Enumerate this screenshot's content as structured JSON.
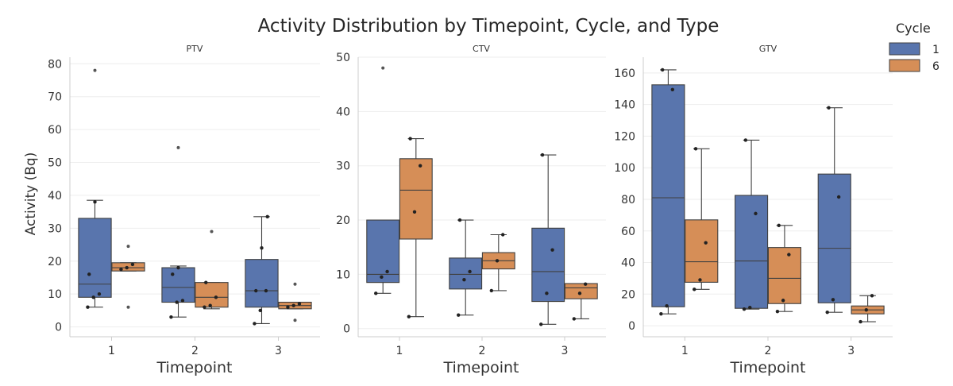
{
  "chart_data": {
    "type": "box",
    "title": "Activity Distribution by Timepoint, Cycle, and Type",
    "ylabel": "Activity (Bq)",
    "legend": {
      "title": "Cycle",
      "position": "top-right",
      "entries": [
        {
          "label": "1",
          "color": "#5975ad"
        },
        {
          "label": "6",
          "color": "#d68e57"
        }
      ]
    },
    "grid": true,
    "panels": [
      {
        "name": "PTV",
        "xlabel": "Timepoint",
        "categories": [
          "1",
          "2",
          "3"
        ],
        "ylim": [
          -3,
          82
        ],
        "yticks": [
          0,
          10,
          20,
          30,
          40,
          50,
          60,
          70,
          80
        ],
        "series": [
          {
            "cycle": "1",
            "boxes": [
              {
                "q1": 9,
                "median": 13,
                "q3": 33,
                "whislo": 6,
                "whishi": 38.5,
                "points": [
                  6,
                  9,
                  10,
                  16,
                  38
                ],
                "fliers": [
                  78
                ]
              },
              {
                "q1": 7.5,
                "median": 12,
                "q3": 18,
                "whislo": 3,
                "whishi": 18.5,
                "points": [
                  3,
                  7.5,
                  8,
                  16,
                  18
                ],
                "fliers": [
                  54.5
                ]
              },
              {
                "q1": 6,
                "median": 11,
                "q3": 20.5,
                "whislo": 1,
                "whishi": 33.5,
                "points": [
                  1,
                  5,
                  11,
                  11,
                  24,
                  33.5
                ],
                "fliers": []
              }
            ]
          },
          {
            "cycle": "6",
            "boxes": [
              {
                "q1": 17,
                "median": 18,
                "q3": 19.5,
                "whislo": 17,
                "whishi": 19.5,
                "points": [
                  17.5,
                  18,
                  19
                ],
                "fliers": [
                  6,
                  24.5
                ]
              },
              {
                "q1": 6,
                "median": 9,
                "q3": 13.5,
                "whislo": 5.5,
                "whishi": 13.5,
                "points": [
                  6,
                  6.5,
                  9,
                  13.5
                ],
                "fliers": [
                  29
                ]
              },
              {
                "q1": 5.5,
                "median": 6.5,
                "q3": 7.5,
                "whislo": 5.5,
                "whishi": 7.5,
                "points": [
                  6,
                  6.5,
                  7
                ],
                "fliers": [
                  2,
                  13
                ]
              }
            ]
          }
        ]
      },
      {
        "name": "CTV",
        "xlabel": "Timepoint",
        "categories": [
          "1",
          "2",
          "3"
        ],
        "ylim": [
          -1.5,
          50
        ],
        "yticks": [
          0,
          10,
          20,
          30,
          40,
          50
        ],
        "series": [
          {
            "cycle": "1",
            "boxes": [
              {
                "q1": 8.5,
                "median": 10,
                "q3": 20,
                "whislo": 6.5,
                "whishi": 20,
                "points": [
                  6.5,
                  9.5,
                  10.5
                ],
                "fliers": [
                  48
                ]
              },
              {
                "q1": 7.3,
                "median": 10,
                "q3": 13,
                "whislo": 2.5,
                "whishi": 20,
                "points": [
                  2.5,
                  9,
                  10.5,
                  20
                ],
                "fliers": []
              },
              {
                "q1": 5,
                "median": 10.5,
                "q3": 18.5,
                "whislo": 0.8,
                "whishi": 32,
                "points": [
                  0.8,
                  6.5,
                  14.5,
                  32
                ],
                "fliers": []
              }
            ]
          },
          {
            "cycle": "6",
            "boxes": [
              {
                "q1": 16.5,
                "median": 25.5,
                "q3": 31.3,
                "whislo": 2.2,
                "whishi": 35,
                "points": [
                  2.2,
                  21.5,
                  30,
                  35
                ],
                "fliers": []
              },
              {
                "q1": 11,
                "median": 12.5,
                "q3": 14,
                "whislo": 7,
                "whishi": 17.3,
                "points": [
                  7,
                  12.5,
                  17.3
                ],
                "fliers": []
              },
              {
                "q1": 5.5,
                "median": 7.5,
                "q3": 8.3,
                "whislo": 1.8,
                "whishi": 8.3,
                "points": [
                  1.8,
                  6.5,
                  8.2
                ],
                "fliers": []
              }
            ]
          }
        ]
      },
      {
        "name": "GTV",
        "xlabel": "Timepoint",
        "categories": [
          "1",
          "2",
          "3"
        ],
        "ylim": [
          -7,
          170
        ],
        "yticks": [
          0,
          20,
          40,
          60,
          80,
          100,
          120,
          140,
          160
        ],
        "series": [
          {
            "cycle": "1",
            "boxes": [
              {
                "q1": 12,
                "median": 81,
                "q3": 152.5,
                "whislo": 7.5,
                "whishi": 162,
                "points": [
                  7.5,
                  12.5,
                  149.5,
                  162
                ],
                "fliers": []
              },
              {
                "q1": 11,
                "median": 41,
                "q3": 82.5,
                "whislo": 10.5,
                "whishi": 117.5,
                "points": [
                  10.5,
                  11.5,
                  71,
                  117.5
                ],
                "fliers": []
              },
              {
                "q1": 14.5,
                "median": 49,
                "q3": 96,
                "whislo": 8.5,
                "whishi": 138,
                "points": [
                  8.5,
                  16.5,
                  81.5,
                  138
                ],
                "fliers": []
              }
            ]
          },
          {
            "cycle": "6",
            "boxes": [
              {
                "q1": 27.5,
                "median": 40.5,
                "q3": 67,
                "whislo": 23,
                "whishi": 112,
                "points": [
                  23,
                  29,
                  52.5,
                  112
                ],
                "fliers": []
              },
              {
                "q1": 14,
                "median": 30,
                "q3": 49.5,
                "whislo": 9,
                "whishi": 63.5,
                "points": [
                  9,
                  16,
                  45,
                  63.5
                ],
                "fliers": []
              },
              {
                "q1": 7.5,
                "median": 10,
                "q3": 12.5,
                "whislo": 2.5,
                "whishi": 19,
                "points": [
                  2.5,
                  10,
                  19
                ],
                "fliers": []
              }
            ]
          }
        ]
      }
    ]
  }
}
